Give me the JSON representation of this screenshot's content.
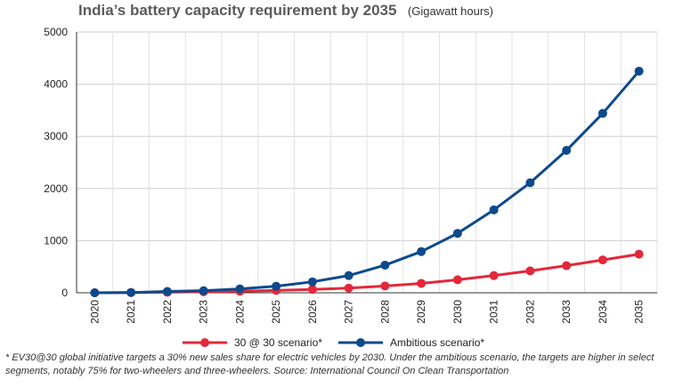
{
  "chart_data": {
    "type": "line",
    "title": "India’s battery capacity requirement by 2035",
    "unit": "(Gigawatt hours)",
    "categories": [
      "2020",
      "2021",
      "2022",
      "2023",
      "2024",
      "2025",
      "2026",
      "2027",
      "2028",
      "2029",
      "2030",
      "2031",
      "2032",
      "2033",
      "2034",
      "2035"
    ],
    "series": [
      {
        "name": "30 @ 30 scenario*",
        "color": "#e3283a",
        "values": [
          0,
          5,
          10,
          20,
          30,
          45,
          65,
          90,
          130,
          180,
          250,
          330,
          420,
          520,
          630,
          740
        ]
      },
      {
        "name": "Ambitious scenario*",
        "color": "#0d4a8c",
        "values": [
          0,
          5,
          25,
          40,
          75,
          125,
          210,
          330,
          530,
          790,
          1140,
          1590,
          2110,
          2730,
          3440,
          4250
        ]
      }
    ],
    "ylim": [
      0,
      5000
    ],
    "yticks": [
      0,
      1000,
      2000,
      3000,
      4000,
      5000
    ],
    "grid": true,
    "legend_position": "bottom-center"
  },
  "footnote": "* EV30@30 global initiative targets a 30% new sales share for electric vehicles by 2030. Under the ambitious scenario, the targets are higher in select segments, notably 75% for two-wheelers and three-wheelers. Source: International Council On Clean Transportation"
}
